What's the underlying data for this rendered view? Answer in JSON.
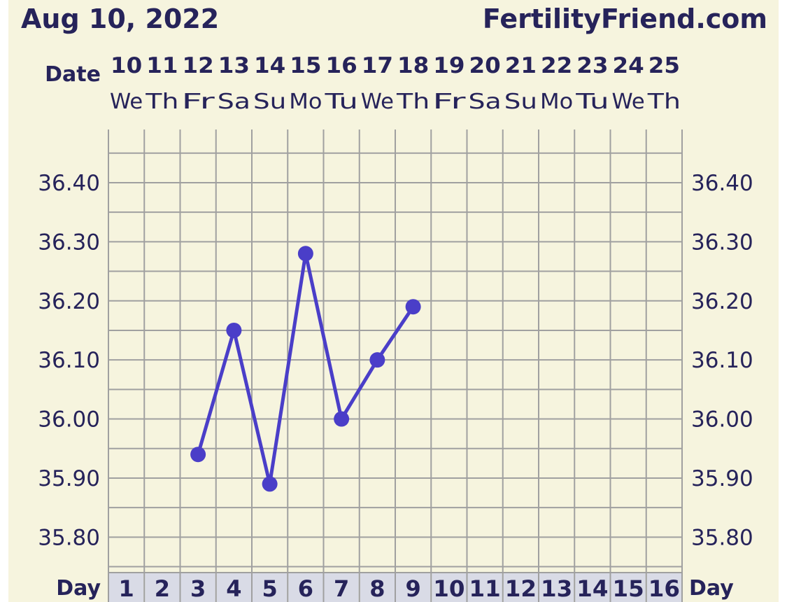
{
  "header": {
    "date_title": "Aug 10, 2022",
    "site": "FertilityFriend.com",
    "date_row_label": "Date",
    "day_row_label_left": "Day",
    "day_row_label_right": "Day"
  },
  "colors": {
    "background": "#f6f4de",
    "text": "#26235a",
    "grid": "#a0a0a0",
    "series": "#4a3ec8",
    "day_cell": "#d9dbe6"
  },
  "chart_data": {
    "type": "line",
    "title": "Aug 10, 2022",
    "dates": [
      "10",
      "11",
      "12",
      "13",
      "14",
      "15",
      "16",
      "17",
      "18",
      "19",
      "20",
      "21",
      "22",
      "23",
      "24",
      "25"
    ],
    "weekdays": [
      "We",
      "Th",
      "Fr",
      "Sa",
      "Su",
      "Mo",
      "Tu",
      "We",
      "Th",
      "Fr",
      "Sa",
      "Su",
      "Mo",
      "Tu",
      "We",
      "Th"
    ],
    "days": [
      "1",
      "2",
      "3",
      "4",
      "5",
      "6",
      "7",
      "8",
      "9",
      "10",
      "11",
      "12",
      "13",
      "14",
      "15",
      "16"
    ],
    "y_ticks": [
      "36.40",
      "36.30",
      "36.20",
      "36.10",
      "36.00",
      "35.90",
      "35.80"
    ],
    "ylim": [
      35.74,
      36.49
    ],
    "grid": true,
    "series": [
      {
        "points": [
          {
            "day": 3,
            "temp": 35.94
          },
          {
            "day": 4,
            "temp": 36.15
          },
          {
            "day": 5,
            "temp": 35.89
          },
          {
            "day": 6,
            "temp": 36.28
          },
          {
            "day": 7,
            "temp": 36.0
          },
          {
            "day": 8,
            "temp": 36.1
          },
          {
            "day": 9,
            "temp": 36.19
          }
        ]
      }
    ]
  }
}
